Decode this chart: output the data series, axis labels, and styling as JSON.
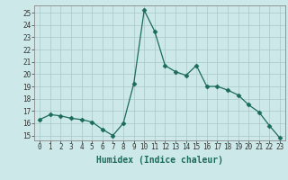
{
  "x": [
    0,
    1,
    2,
    3,
    4,
    5,
    6,
    7,
    8,
    9,
    10,
    11,
    12,
    13,
    14,
    15,
    16,
    17,
    18,
    19,
    20,
    21,
    22,
    23
  ],
  "y": [
    16.3,
    16.7,
    16.6,
    16.4,
    16.3,
    16.1,
    15.5,
    15.0,
    16.0,
    19.2,
    25.2,
    23.5,
    20.7,
    20.2,
    19.9,
    20.7,
    19.0,
    19.0,
    18.7,
    18.3,
    17.5,
    16.9,
    15.8,
    14.8
  ],
  "line_color": "#1a6b5a",
  "marker": "D",
  "marker_size": 2.5,
  "bg_color": "#cde8e8",
  "grid_color_major": "#a8c8c8",
  "grid_color_minor": "#bcd8d8",
  "xlabel": "Humidex (Indice chaleur)",
  "ylabel_ticks": [
    15,
    16,
    17,
    18,
    19,
    20,
    21,
    22,
    23,
    24,
    25
  ],
  "xlim": [
    -0.5,
    23.5
  ],
  "ylim": [
    14.6,
    25.6
  ],
  "xlabel_fontsize": 7,
  "tick_fontsize": 5.5
}
